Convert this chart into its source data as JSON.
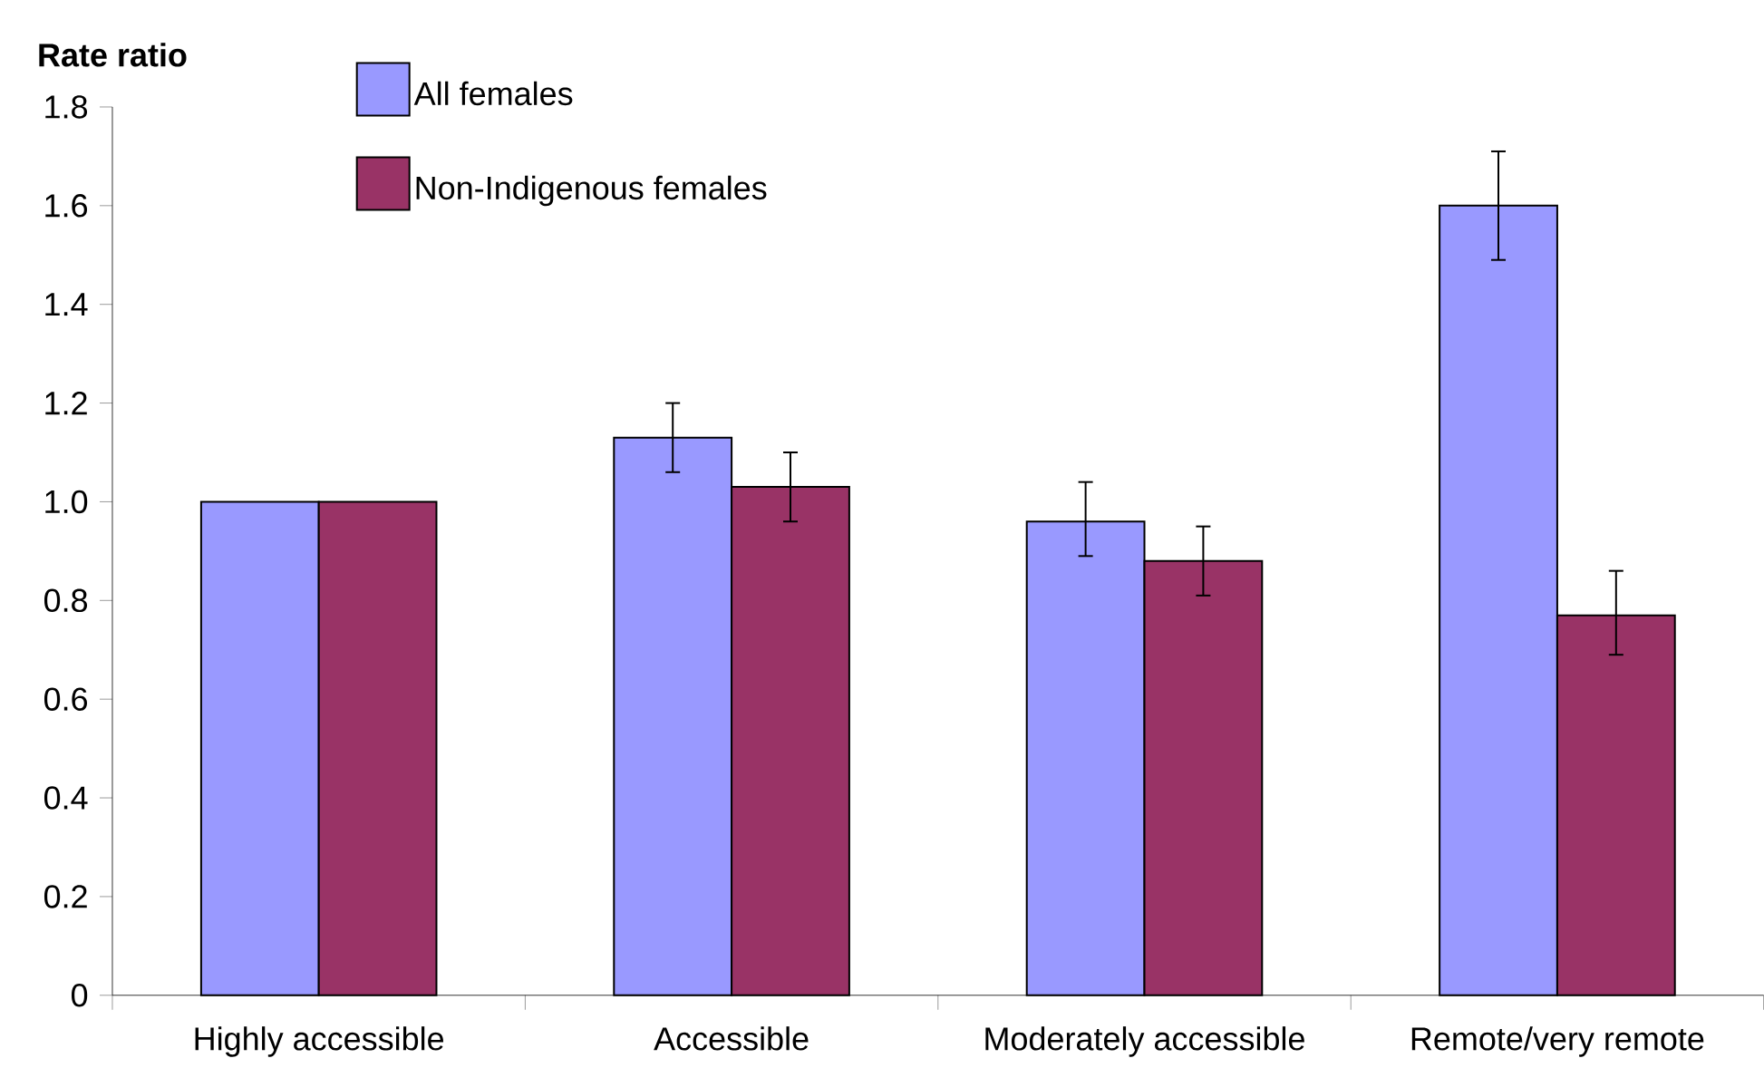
{
  "chart_data": {
    "type": "bar",
    "ylabel": "Rate ratio",
    "categories": [
      "Highly accessible",
      "Accessible",
      "Moderately accessible",
      "Remote/very remote"
    ],
    "series": [
      {
        "name": "All females",
        "color": "#9999ff",
        "values": [
          1.0,
          1.13,
          0.96,
          1.6
        ],
        "errors": [
          null,
          [
            1.06,
            1.2
          ],
          [
            0.89,
            1.04
          ],
          [
            1.49,
            1.71
          ]
        ]
      },
      {
        "name": "Non-Indigenous females",
        "color": "#993366",
        "values": [
          1.0,
          1.03,
          0.88,
          0.77
        ],
        "errors": [
          null,
          [
            0.96,
            1.1
          ],
          [
            0.81,
            0.95
          ],
          [
            0.69,
            0.86
          ]
        ]
      }
    ],
    "ylim": [
      0,
      1.8
    ],
    "yticks": [
      0,
      0.2,
      0.4,
      0.6,
      0.8,
      {
        "value": 1,
        "label": "1.0"
      },
      1.2,
      1.4,
      1.6,
      1.8
    ],
    "legend": "top",
    "grid": false
  }
}
